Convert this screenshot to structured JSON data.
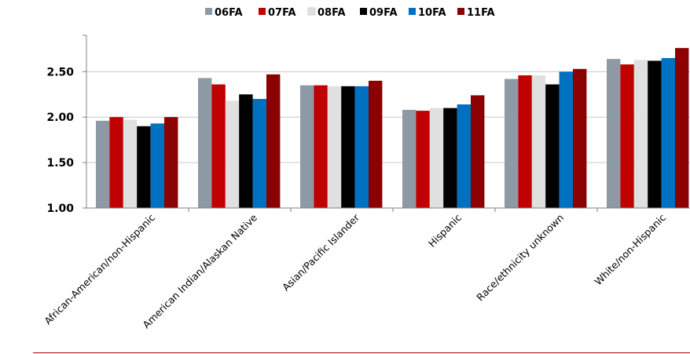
{
  "chart_data": {
    "type": "bar",
    "title": "",
    "xlabel": "",
    "ylabel": "",
    "ylim": [
      1.0,
      2.9
    ],
    "yticks": [
      "1.00",
      "1.50",
      "2.00",
      "2.50"
    ],
    "grid": true,
    "legend_position": "top",
    "categories": [
      "African-American/non-Hispanic",
      "American Indian/Alaskan Native",
      "Asian/Pacific Islander",
      "Hispanic",
      "Race/ethnicity unknown",
      "White/non-Hispanic"
    ],
    "series": [
      {
        "name": "06FA",
        "color": "#8d9aa6",
        "values": [
          1.96,
          2.43,
          2.35,
          2.08,
          2.42,
          2.64
        ]
      },
      {
        "name": "07FA",
        "color": "#c00000",
        "values": [
          2.0,
          2.36,
          2.35,
          2.07,
          2.46,
          2.58
        ]
      },
      {
        "name": "08FA",
        "color": "#e0e0e0",
        "values": [
          1.97,
          2.18,
          2.34,
          2.1,
          2.46,
          2.63
        ]
      },
      {
        "name": "09FA",
        "color": "#000000",
        "values": [
          1.9,
          2.25,
          2.34,
          2.1,
          2.36,
          2.62
        ]
      },
      {
        "name": "10FA",
        "color": "#0070c0",
        "values": [
          1.93,
          2.2,
          2.34,
          2.14,
          2.5,
          2.65
        ]
      },
      {
        "name": "11FA",
        "color": "#8b0000",
        "values": [
          2.0,
          2.47,
          2.4,
          2.24,
          2.53,
          2.76
        ]
      }
    ]
  }
}
